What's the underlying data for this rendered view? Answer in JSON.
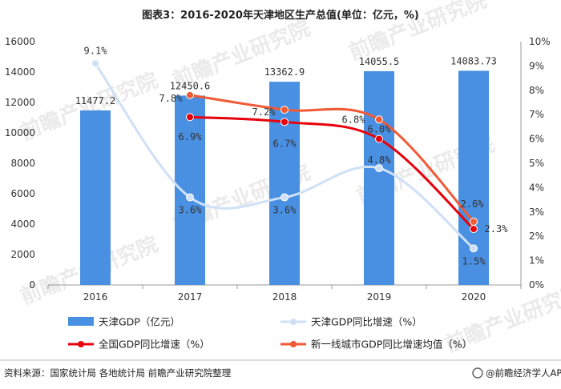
{
  "chart_data": {
    "type": "bar",
    "title": "图表3：2016-2020年天津地区生产总值(单位：亿元，%)",
    "categories": [
      "2016",
      "2017",
      "2018",
      "2019",
      "2020"
    ],
    "ylim_left": [
      0,
      16000
    ],
    "yticks_left": [
      "0",
      "2000",
      "4000",
      "6000",
      "8000",
      "10000",
      "12000",
      "14000",
      "16000"
    ],
    "ylim_right": [
      0,
      10
    ],
    "yticks_right": [
      "0%",
      "1%",
      "2%",
      "3%",
      "4%",
      "5%",
      "6%",
      "7%",
      "8%",
      "9%",
      "10%"
    ],
    "grid": false,
    "legend_position": "bottom",
    "series": [
      {
        "name": "天津GDP（亿元）",
        "kind": "bar",
        "axis": "left",
        "color": "#4a90e2",
        "values": [
          11477.2,
          12450.6,
          13362.9,
          14055.5,
          14083.73
        ],
        "labels": [
          "11477.2",
          "12450.6",
          "13362.9",
          "14055.5",
          "14083.73"
        ]
      },
      {
        "name": "天津GDP同比增速（%）",
        "kind": "line",
        "axis": "right",
        "color": "#cfe0f7",
        "values": [
          9.1,
          3.6,
          3.6,
          4.8,
          1.5
        ],
        "labels": [
          "9.1%",
          "3.6%",
          "3.6%",
          "4.8%",
          "1.5%"
        ]
      },
      {
        "name": "全国GDP同比增速（%）",
        "kind": "line",
        "axis": "right",
        "color": "#e8000b",
        "values": [
          null,
          6.9,
          6.7,
          6.0,
          2.3
        ],
        "labels": [
          "",
          "6.9%",
          "6.7%",
          "6.0%",
          "2.3%"
        ]
      },
      {
        "name": "新一线城市GDP同比增速均值（%）",
        "kind": "line",
        "axis": "right",
        "color": "#f05a35",
        "values": [
          null,
          7.8,
          7.2,
          6.8,
          2.6
        ],
        "labels": [
          "",
          "7.8%",
          "7.2%",
          "6.8%",
          "2.6%"
        ]
      }
    ]
  },
  "footer": {
    "source": "资料来源：国家统计局 各地统计局 前瞻产业研究院整理",
    "brand": "@前瞻经济学人APP"
  },
  "watermark": "前瞻产业研究院"
}
